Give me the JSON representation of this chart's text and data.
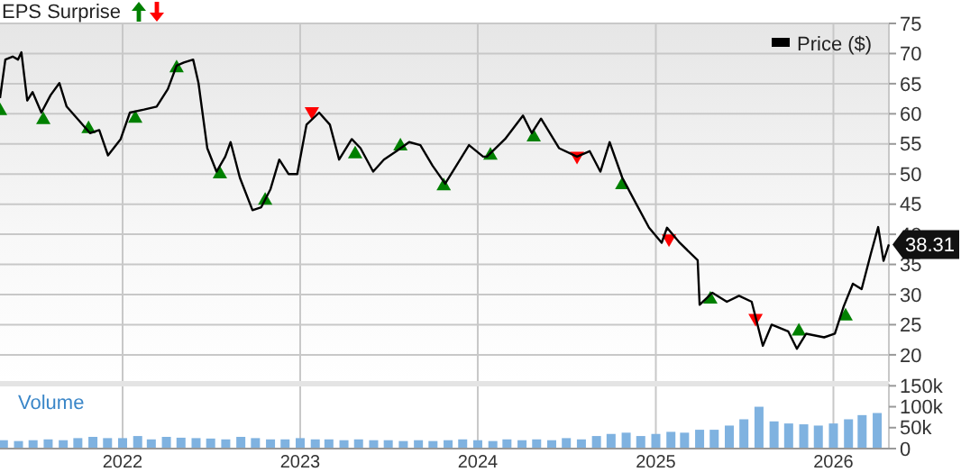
{
  "chart_data": [
    {
      "type": "line",
      "title": "EPS Surprise",
      "legend": "top right",
      "grid": true,
      "tick_labels": "y",
      "xlim": [
        "2021-04-24",
        "2026-04-25"
      ],
      "xticks": [
        {
          "value": "2022-01-01",
          "label": null
        },
        {
          "value": "2023-01-01",
          "label": null
        },
        {
          "value": "2024-01-01",
          "label": null
        },
        {
          "value": "2025-01-01",
          "label": null
        },
        {
          "value": "2026-01-01",
          "label": null
        }
      ],
      "ylim": [
        15.5,
        75
      ],
      "yticks": [
        20,
        25,
        30,
        35,
        40,
        45,
        50,
        55,
        60,
        65,
        70,
        75
      ],
      "annotations": [
        {
          "text": "38.31",
          "x": "2026-04-25",
          "y": 38.31
        }
      ],
      "series": [
        {
          "name": "Price ($)",
          "type": "line",
          "color": "#000000",
          "x": [
            "2021-04-24",
            "2021-05-05",
            "2021-05-20",
            "2021-05-31",
            "2021-06-07",
            "2021-06-19",
            "2021-06-30",
            "2021-07-18",
            "2021-08-06",
            "2021-08-24",
            "2021-09-08",
            "2021-10-26",
            "2021-11-14",
            "2021-12-02",
            "2021-12-28",
            "2022-01-16",
            "2022-02-14",
            "2022-03-12",
            "2022-04-04",
            "2022-04-22",
            "2022-05-07",
            "2022-05-26",
            "2022-06-06",
            "2022-06-24",
            "2022-07-13",
            "2022-07-31",
            "2022-08-11",
            "2022-08-30",
            "2022-09-25",
            "2022-10-13",
            "2022-11-01",
            "2022-11-19",
            "2022-12-08",
            "2022-12-26",
            "2023-01-14",
            "2023-02-09",
            "2023-03-03",
            "2023-03-22",
            "2023-04-17",
            "2023-05-05",
            "2023-05-31",
            "2023-06-22",
            "2023-07-18",
            "2023-08-13",
            "2023-09-05",
            "2023-09-30",
            "2023-10-26",
            "2023-11-18",
            "2023-12-14",
            "2024-01-12",
            "2024-01-20",
            "2024-02-26",
            "2024-04-03",
            "2024-04-21",
            "2024-05-10",
            "2024-06-16",
            "2024-07-23",
            "2024-08-18",
            "2024-09-09",
            "2024-09-28",
            "2024-10-24",
            "2024-11-22",
            "2024-12-18",
            "2025-01-13",
            "2025-01-24",
            "2025-02-19",
            "2025-03-28",
            "2025-04-01",
            "2025-04-27",
            "2025-05-27",
            "2025-06-21",
            "2025-07-17",
            "2025-07-29",
            "2025-08-09",
            "2025-08-27",
            "2025-09-30",
            "2025-10-18",
            "2025-11-06",
            "2025-12-13",
            "2026-01-04",
            "2026-01-22",
            "2026-02-10",
            "2026-02-28",
            "2026-03-19",
            "2026-04-03",
            "2026-04-14",
            "2026-04-25"
          ],
          "values": [
            62.6,
            69.0,
            69.5,
            69.0,
            70.2,
            62.2,
            63.6,
            60.2,
            63.1,
            65.1,
            61.2,
            56.8,
            57.3,
            53.1,
            55.8,
            60.2,
            60.7,
            61.2,
            64.1,
            68.0,
            68.5,
            69.0,
            65.1,
            54.3,
            50.4,
            52.9,
            55.3,
            49.4,
            44.0,
            44.5,
            47.5,
            52.4,
            50.0,
            50.0,
            58.2,
            60.2,
            58.2,
            52.4,
            55.8,
            54.3,
            50.4,
            52.4,
            53.8,
            55.3,
            54.8,
            51.4,
            48.4,
            51.4,
            54.8,
            52.9,
            52.9,
            55.8,
            59.7,
            56.8,
            59.2,
            54.3,
            52.9,
            53.8,
            50.4,
            55.3,
            49.4,
            45.0,
            41.1,
            38.6,
            41.1,
            38.6,
            35.7,
            28.3,
            30.3,
            28.8,
            29.8,
            28.8,
            25.0,
            21.5,
            25.0,
            23.9,
            21.0,
            23.5,
            22.9,
            23.5,
            28.0,
            31.8,
            30.9,
            36.8,
            41.2,
            35.6,
            38.3
          ]
        },
        {
          "type": "scatter",
          "marker": "triangle",
          "color": "#008000",
          "x": [
            "2021-04-24",
            "2021-07-22",
            "2021-10-23",
            "2022-01-27",
            "2022-04-22",
            "2022-07-20",
            "2022-10-21",
            "2023-04-24",
            "2023-07-26",
            "2023-10-23",
            "2024-01-27",
            "2024-04-25",
            "2024-10-24",
            "2025-04-23",
            "2025-10-22",
            "2026-01-26"
          ],
          "values": [
            60.7,
            59.2,
            57.7,
            59.4,
            67.8,
            50.2,
            45.8,
            53.5,
            54.8,
            48.2,
            53.3,
            56.3,
            48.4,
            29.4,
            24.1,
            26.6
          ]
        },
        {
          "type": "scatter",
          "color": "#ff0000",
          "x": [
            "2023-01-25",
            "2024-07-23",
            "2025-01-28",
            "2025-07-25"
          ],
          "values": [
            60.2,
            52.8,
            39.1,
            25.9
          ]
        }
      ]
    },
    {
      "type": "bar",
      "title": "Volume",
      "color": "#7fb2e0",
      "grid": "x",
      "xlim": [
        "2021-04-24",
        "2026-04-25"
      ],
      "xticks": [
        {
          "value": "2022-01-01",
          "label": "2022"
        },
        {
          "value": "2023-01-01",
          "label": "2023"
        },
        {
          "value": "2024-01-01",
          "label": "2024"
        },
        {
          "value": "2025-01-01",
          "label": "2025"
        },
        {
          "value": "2026-01-01",
          "label": "2026"
        }
      ],
      "ylim": [
        0,
        155000
      ],
      "yticks": [
        0,
        {
          "value": 50000,
          "label": "50k"
        },
        {
          "value": 100000,
          "label": "100k"
        },
        {
          "value": 150000,
          "label": "150k"
        }
      ],
      "x": [
        "2021-05",
        "2021-06",
        "2021-07",
        "2021-08",
        "2021-09",
        "2021-10",
        "2021-11",
        "2021-12",
        "2022-01",
        "2022-02",
        "2022-03",
        "2022-04",
        "2022-05",
        "2022-06",
        "2022-07",
        "2022-08",
        "2022-09",
        "2022-10",
        "2022-11",
        "2022-12",
        "2023-01",
        "2023-02",
        "2023-03",
        "2023-04",
        "2023-05",
        "2023-06",
        "2023-07",
        "2023-08",
        "2023-09",
        "2023-10",
        "2023-11",
        "2023-12",
        "2024-01",
        "2024-02",
        "2024-03",
        "2024-04",
        "2024-05",
        "2024-06",
        "2024-07",
        "2024-08",
        "2024-09",
        "2024-10",
        "2024-11",
        "2024-12",
        "2025-01",
        "2025-02",
        "2025-03",
        "2025-04",
        "2025-05",
        "2025-06",
        "2025-07",
        "2025-08",
        "2025-09",
        "2025-10",
        "2025-11",
        "2025-12",
        "2026-01",
        "2026-02",
        "2026-03",
        "2026-04"
      ],
      "values": [
        20000,
        18000,
        20000,
        22000,
        20000,
        25000,
        28000,
        25000,
        25000,
        30000,
        22000,
        28000,
        26000,
        25000,
        24000,
        22000,
        28000,
        25000,
        22000,
        22000,
        25000,
        22000,
        22000,
        20000,
        22000,
        20000,
        20000,
        18000,
        20000,
        18000,
        20000,
        22000,
        20000,
        18000,
        22000,
        20000,
        22000,
        20000,
        25000,
        22000,
        30000,
        35000,
        38000,
        30000,
        35000,
        40000,
        38000,
        45000,
        45000,
        55000,
        70000,
        100000,
        65000,
        60000,
        58000,
        55000,
        60000,
        70000,
        80000,
        85000
      ]
    }
  ]
}
